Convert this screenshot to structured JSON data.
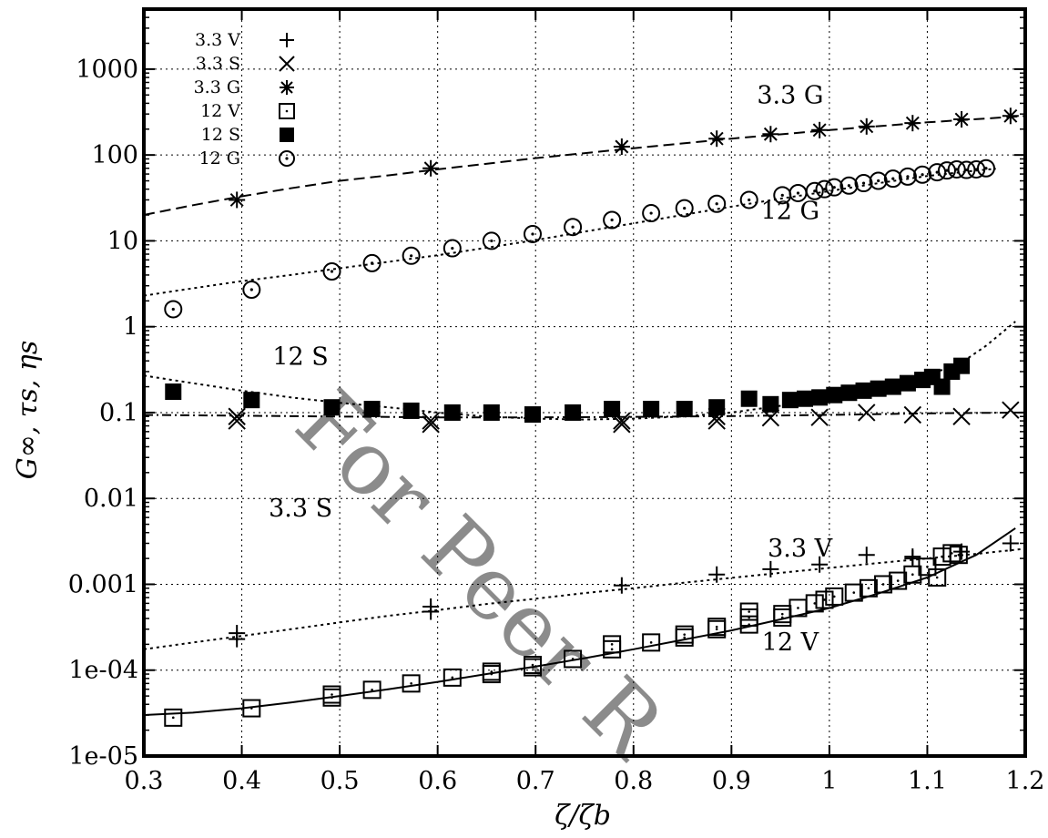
{
  "chart_data": {
    "type": "scatter",
    "xlabel": "ζ/ζb",
    "ylabel": "G∞, τs, ηs",
    "xlim": [
      0.3,
      1.2
    ],
    "ylim": [
      1e-05,
      5000
    ],
    "y_scale": "log",
    "grid": true,
    "legend_position": "top-left",
    "x_ticks": [
      0.3,
      0.4,
      0.5,
      0.6,
      0.7,
      0.8,
      0.9,
      1.0,
      1.1,
      1.2
    ],
    "x_tick_labels": [
      "0.3",
      "0.4",
      "0.5",
      "0.6",
      "0.7",
      "0.8",
      "0.9",
      "1",
      "1.1",
      "1.2"
    ],
    "y_ticks": [
      1e-05,
      0.0001,
      0.001,
      0.01,
      0.1,
      1,
      10,
      100,
      1000
    ],
    "y_tick_labels": [
      "1e-05",
      "1e-04",
      "0.001",
      "0.01",
      "0.1",
      "1",
      "10",
      "100",
      "1000"
    ],
    "series_labels": [
      "3.3 G",
      "12 G",
      "12 S",
      "3.3 S",
      "3.3 V",
      "12 V"
    ],
    "series": [
      {
        "name": "3.3 V",
        "marker": "plus",
        "x": [
          0.395,
          0.395,
          0.593,
          0.593,
          0.788,
          0.885,
          0.94,
          0.99,
          1.038,
          1.085,
          1.085,
          1.135,
          1.185
        ],
        "y": [
          0.00023,
          0.00027,
          0.00048,
          0.00055,
          0.00097,
          0.0013,
          0.0015,
          0.0017,
          0.0022,
          0.002,
          0.0021,
          0.0024,
          0.003
        ]
      },
      {
        "name": "3.3 S",
        "marker": "x",
        "x": [
          0.395,
          0.395,
          0.593,
          0.593,
          0.788,
          0.788,
          0.885,
          0.885,
          0.94,
          0.99,
          1.038,
          1.085,
          1.135,
          1.185
        ],
        "y": [
          0.08,
          0.09,
          0.073,
          0.08,
          0.073,
          0.08,
          0.08,
          0.09,
          0.087,
          0.088,
          0.1,
          0.094,
          0.09,
          0.107
        ]
      },
      {
        "name": "3.3 G",
        "marker": "asterisk",
        "x": [
          0.395,
          0.593,
          0.788,
          0.885,
          0.94,
          0.99,
          1.038,
          1.085,
          1.135,
          1.185
        ],
        "y": [
          30,
          70,
          125,
          155,
          175,
          195,
          215,
          235,
          260,
          285
        ]
      },
      {
        "name": "12 V",
        "marker": "open-square",
        "x": [
          0.33,
          0.41,
          0.492,
          0.492,
          0.533,
          0.573,
          0.615,
          0.655,
          0.655,
          0.697,
          0.697,
          0.738,
          0.778,
          0.778,
          0.818,
          0.852,
          0.852,
          0.885,
          0.885,
          0.918,
          0.918,
          0.918,
          0.952,
          0.952,
          0.968,
          0.985,
          0.995,
          1.005,
          1.025,
          1.04,
          1.055,
          1.07,
          1.085,
          1.1,
          1.11,
          1.115,
          1.125,
          1.132
        ],
        "y": [
          2.8e-05,
          3.6e-05,
          4.8e-05,
          5.2e-05,
          5.9e-05,
          7e-05,
          8.2e-05,
          9e-05,
          9.6e-05,
          0.000108,
          0.000115,
          0.000135,
          0.000175,
          0.0002,
          0.00021,
          0.00024,
          0.00026,
          0.0003,
          0.00032,
          0.00034,
          0.00041,
          0.00048,
          0.00041,
          0.00045,
          0.00053,
          0.0006,
          0.00066,
          0.00072,
          0.0008,
          0.0009,
          0.001,
          0.0011,
          0.0013,
          0.0016,
          0.0012,
          0.0021,
          0.0023,
          0.0022
        ]
      },
      {
        "name": "12 S",
        "marker": "filled-square",
        "x": [
          0.33,
          0.41,
          0.492,
          0.533,
          0.573,
          0.615,
          0.655,
          0.697,
          0.738,
          0.778,
          0.818,
          0.852,
          0.885,
          0.918,
          0.94,
          0.96,
          0.975,
          0.99,
          1.005,
          1.02,
          1.035,
          1.05,
          1.065,
          1.08,
          1.095,
          1.105,
          1.115,
          1.125,
          1.135
        ],
        "y": [
          0.175,
          0.14,
          0.115,
          0.11,
          0.105,
          0.1,
          0.1,
          0.095,
          0.1,
          0.11,
          0.11,
          0.11,
          0.115,
          0.145,
          0.125,
          0.14,
          0.145,
          0.15,
          0.16,
          0.17,
          0.18,
          0.19,
          0.2,
          0.22,
          0.24,
          0.26,
          0.2,
          0.3,
          0.35
        ]
      },
      {
        "name": "12 G",
        "marker": "dotted-circle",
        "x": [
          0.33,
          0.41,
          0.492,
          0.533,
          0.573,
          0.615,
          0.655,
          0.697,
          0.738,
          0.778,
          0.818,
          0.852,
          0.885,
          0.918,
          0.952,
          0.968,
          0.985,
          0.995,
          1.005,
          1.02,
          1.035,
          1.05,
          1.065,
          1.08,
          1.095,
          1.11,
          1.12,
          1.13,
          1.14,
          1.15,
          1.16
        ],
        "y": [
          1.6,
          2.7,
          4.4,
          5.5,
          6.7,
          8.2,
          10,
          12,
          14.5,
          17.5,
          21,
          24,
          27,
          30,
          34,
          36,
          38,
          40,
          42,
          44,
          47,
          50,
          53,
          56,
          59,
          63,
          66,
          68,
          67,
          68,
          70
        ]
      }
    ],
    "fit_curves": [
      {
        "series": "3.3 G",
        "style": "dashed",
        "x": [
          0.3,
          0.35,
          0.4,
          0.45,
          0.5,
          0.55,
          0.6,
          0.7,
          0.8,
          0.9,
          1.0,
          1.1,
          1.2
        ],
        "y": [
          20,
          26,
          33,
          41,
          50,
          58,
          68,
          92,
          120,
          155,
          195,
          240,
          285
        ]
      },
      {
        "series": "12 G",
        "style": "dotted",
        "x": [
          0.3,
          0.35,
          0.4,
          0.45,
          0.5,
          0.55,
          0.6,
          0.65,
          0.7,
          0.75,
          0.8,
          0.85,
          0.9,
          0.95,
          1.0,
          1.05,
          1.1,
          1.15,
          1.17
        ],
        "y": [
          2.3,
          2.8,
          3.4,
          4.0,
          4.8,
          5.7,
          6.8,
          8.3,
          10.2,
          12.8,
          16,
          20,
          25,
          31,
          38,
          47,
          57,
          66,
          69
        ]
      },
      {
        "series": "12 S",
        "style": "dotted",
        "x": [
          0.3,
          0.35,
          0.4,
          0.45,
          0.5,
          0.55,
          0.6,
          0.65,
          0.7,
          0.75,
          0.8,
          0.85,
          0.9,
          0.95,
          1.0,
          1.05,
          1.1,
          1.13,
          1.16,
          1.19
        ],
        "y": [
          0.27,
          0.22,
          0.18,
          0.15,
          0.13,
          0.115,
          0.1,
          0.09,
          0.085,
          0.083,
          0.085,
          0.09,
          0.1,
          0.12,
          0.15,
          0.2,
          0.28,
          0.35,
          0.6,
          1.15
        ]
      },
      {
        "series": "3.3 S",
        "style": "dash-dot",
        "x": [
          0.3,
          0.4,
          0.5,
          0.6,
          0.7,
          0.8,
          0.9,
          1.0,
          1.1,
          1.2
        ],
        "y": [
          0.094,
          0.092,
          0.09,
          0.088,
          0.088,
          0.089,
          0.091,
          0.094,
          0.098,
          0.1
        ]
      },
      {
        "series": "3.3 V",
        "style": "dotted",
        "x": [
          0.3,
          0.35,
          0.4,
          0.45,
          0.5,
          0.55,
          0.6,
          0.65,
          0.7,
          0.75,
          0.8,
          0.85,
          0.9,
          0.95,
          1.0,
          1.05,
          1.1,
          1.15,
          1.2
        ],
        "y": [
          0.000175,
          0.00021,
          0.00025,
          0.0003,
          0.00036,
          0.00043,
          0.0005,
          0.00059,
          0.00068,
          0.00079,
          0.0009,
          0.00104,
          0.00119,
          0.00136,
          0.00155,
          0.00177,
          0.002,
          0.00226,
          0.0026
        ]
      },
      {
        "series": "12 V",
        "style": "solid",
        "x": [
          0.3,
          0.35,
          0.4,
          0.45,
          0.5,
          0.55,
          0.6,
          0.65,
          0.7,
          0.75,
          0.8,
          0.85,
          0.9,
          0.95,
          1.0,
          1.05,
          1.1,
          1.15,
          1.19
        ],
        "y": [
          3e-05,
          3.2e-05,
          3.6e-05,
          4.2e-05,
          5e-05,
          6e-05,
          7.3e-05,
          9e-05,
          0.00011,
          0.000138,
          0.000175,
          0.000225,
          0.00029,
          0.00039,
          0.00053,
          0.00078,
          0.0012,
          0.0022,
          0.0045
        ]
      }
    ]
  },
  "watermark": "For Peer R"
}
